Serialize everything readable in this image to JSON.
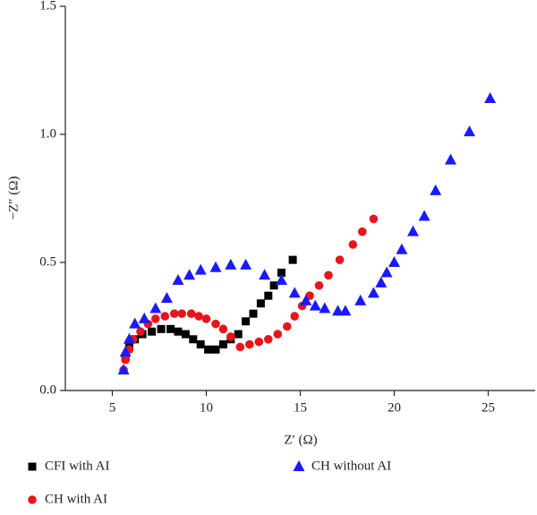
{
  "chart_data": {
    "type": "scatter",
    "xlabel": "Z′ (Ω)",
    "ylabel": "−Z″ (Ω)",
    "xlim": [
      2.5,
      27.5
    ],
    "xticks": [
      5,
      10,
      15,
      20,
      25
    ],
    "ylim": [
      0,
      1.5
    ],
    "yticks": [
      {
        "value": 0,
        "label": "0.0"
      },
      0.5,
      {
        "value": 1,
        "label": "1.0"
      },
      1.5
    ],
    "series": [
      {
        "name": "CFI with AI",
        "color": "#000000",
        "marker": "square",
        "x": [
          5.7,
          5.9,
          6.2,
          6.6,
          7.1,
          7.6,
          8.1,
          8.5,
          8.9,
          9.3,
          9.7,
          10.1,
          10.5,
          10.9,
          11.3,
          11.7,
          12.1,
          12.5,
          12.9,
          13.3,
          13.6,
          14.0,
          14.6
        ],
        "values": [
          0.13,
          0.17,
          0.2,
          0.22,
          0.23,
          0.24,
          0.24,
          0.23,
          0.22,
          0.2,
          0.18,
          0.16,
          0.16,
          0.18,
          0.2,
          0.22,
          0.27,
          0.3,
          0.34,
          0.37,
          0.41,
          0.46,
          0.51
        ]
      },
      {
        "name": "CH with AI",
        "color": "#e8141b",
        "marker": "circle",
        "x": [
          5.6,
          5.7,
          5.9,
          6.1,
          6.5,
          6.9,
          7.3,
          7.8,
          8.3,
          8.7,
          9.2,
          9.6,
          10.0,
          10.5,
          10.9,
          11.3,
          11.8,
          12.3,
          12.8,
          13.3,
          13.8,
          14.3,
          14.7,
          15.1,
          15.5,
          16.0,
          16.5,
          17.1,
          17.8,
          18.3,
          18.9
        ],
        "values": [
          0.08,
          0.12,
          0.16,
          0.2,
          0.23,
          0.26,
          0.28,
          0.29,
          0.3,
          0.3,
          0.3,
          0.29,
          0.28,
          0.26,
          0.24,
          0.21,
          0.17,
          0.18,
          0.19,
          0.2,
          0.22,
          0.25,
          0.29,
          0.33,
          0.37,
          0.41,
          0.45,
          0.51,
          0.57,
          0.62,
          0.67
        ]
      },
      {
        "name": "CH without AI",
        "color": "#1a1aff",
        "marker": "triangle",
        "x": [
          5.6,
          5.7,
          5.9,
          6.2,
          6.7,
          7.3,
          7.9,
          8.5,
          9.1,
          9.7,
          10.5,
          11.3,
          12.1,
          13.1,
          14.0,
          14.7,
          15.3,
          15.8,
          16.3,
          17.0,
          17.4,
          18.2,
          18.9,
          19.3,
          19.6,
          20.0,
          20.4,
          21.0,
          21.6,
          22.2,
          23.0,
          24.0,
          25.1
        ],
        "values": [
          0.08,
          0.15,
          0.2,
          0.26,
          0.28,
          0.32,
          0.36,
          0.43,
          0.45,
          0.47,
          0.48,
          0.49,
          0.49,
          0.45,
          0.43,
          0.38,
          0.35,
          0.33,
          0.32,
          0.31,
          0.31,
          0.35,
          0.38,
          0.42,
          0.46,
          0.5,
          0.55,
          0.62,
          0.68,
          0.78,
          0.9,
          1.01,
          1.14
        ]
      }
    ]
  }
}
